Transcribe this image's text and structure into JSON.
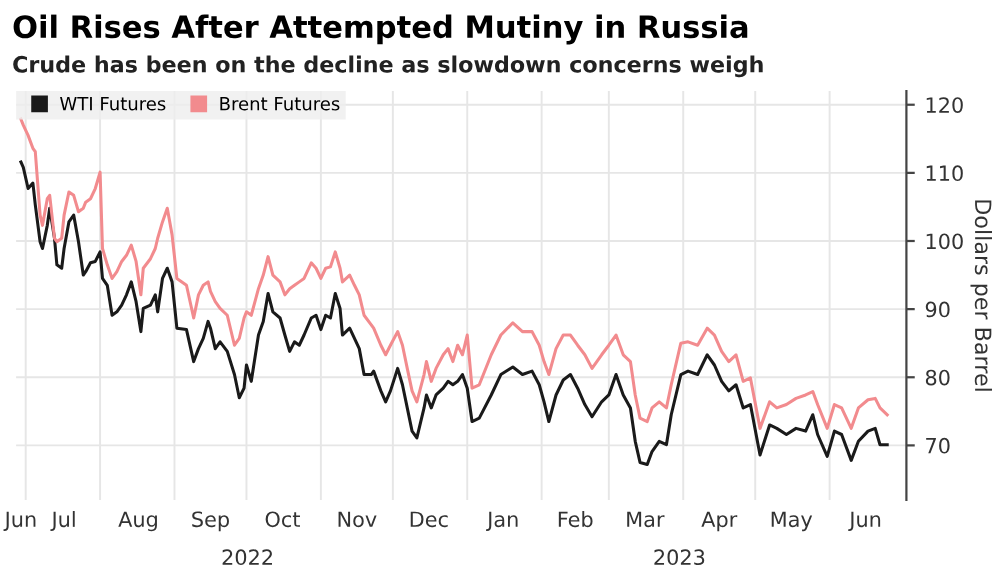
{
  "chart_data": {
    "type": "line",
    "title": "Oil Rises After Attempted Mutiny in Russia",
    "subtitle": "Crude has been on the decline as slowdown concerns weigh",
    "ylabel": "Dollars per Barrel",
    "x": [
      "2022-06-29",
      "2022-06-30",
      "2022-07-02",
      "2022-07-04",
      "2022-07-05",
      "2022-07-07",
      "2022-07-08",
      "2022-07-10",
      "2022-07-11",
      "2022-07-13",
      "2022-07-14",
      "2022-07-16",
      "2022-07-17",
      "2022-07-19",
      "2022-07-21",
      "2022-07-23",
      "2022-07-25",
      "2022-07-26",
      "2022-07-28",
      "2022-07-30",
      "2022-08-01",
      "2022-08-02",
      "2022-08-04",
      "2022-08-06",
      "2022-08-08",
      "2022-08-10",
      "2022-08-12",
      "2022-08-14",
      "2022-08-16",
      "2022-08-18",
      "2022-08-19",
      "2022-08-22",
      "2022-08-24",
      "2022-08-25",
      "2022-08-27",
      "2022-08-29",
      "2022-08-31",
      "2022-09-02",
      "2022-09-06",
      "2022-09-09",
      "2022-09-11",
      "2022-09-13",
      "2022-09-15",
      "2022-09-16",
      "2022-09-18",
      "2022-09-20",
      "2022-09-23",
      "2022-09-26",
      "2022-09-28",
      "2022-09-30",
      "2022-10-01",
      "2022-10-03",
      "2022-10-06",
      "2022-10-08",
      "2022-10-10",
      "2022-10-12",
      "2022-10-15",
      "2022-10-17",
      "2022-10-19",
      "2022-10-21",
      "2022-10-23",
      "2022-10-25",
      "2022-10-28",
      "2022-10-30",
      "2022-11-01",
      "2022-11-03",
      "2022-11-05",
      "2022-11-07",
      "2022-11-09",
      "2022-11-10",
      "2022-11-13",
      "2022-11-15",
      "2022-11-17",
      "2022-11-19",
      "2022-11-22",
      "2022-11-23",
      "2022-11-26",
      "2022-11-28",
      "2022-11-30",
      "2022-12-03",
      "2022-12-05",
      "2022-12-07",
      "2022-12-09",
      "2022-12-11",
      "2022-12-14",
      "2022-12-15",
      "2022-12-17",
      "2022-12-19",
      "2022-12-22",
      "2022-12-24",
      "2022-12-26",
      "2022-12-28",
      "2022-12-30",
      "2023-01-01",
      "2023-01-03",
      "2023-01-06",
      "2023-01-11",
      "2023-01-15",
      "2023-01-20",
      "2023-01-24",
      "2023-01-28",
      "2023-01-31",
      "2023-02-02",
      "2023-02-04",
      "2023-02-07",
      "2023-02-10",
      "2023-02-13",
      "2023-02-16",
      "2023-02-19",
      "2023-02-22",
      "2023-02-26",
      "2023-03-01",
      "2023-03-04",
      "2023-03-07",
      "2023-03-10",
      "2023-03-12",
      "2023-03-14",
      "2023-03-17",
      "2023-03-19",
      "2023-03-22",
      "2023-03-25",
      "2023-03-27",
      "2023-03-31",
      "2023-04-03",
      "2023-04-07",
      "2023-04-11",
      "2023-04-14",
      "2023-04-17",
      "2023-04-20",
      "2023-04-23",
      "2023-04-26",
      "2023-04-29",
      "2023-05-03",
      "2023-05-07",
      "2023-05-10",
      "2023-05-14",
      "2023-05-18",
      "2023-05-22",
      "2023-05-25",
      "2023-05-27",
      "2023-05-31",
      "2023-06-03",
      "2023-06-06",
      "2023-06-10",
      "2023-06-13",
      "2023-06-17",
      "2023-06-20",
      "2023-06-22",
      "2023-06-25"
    ],
    "series": [
      {
        "name": "WTI Futures",
        "color": "#1a1a1a",
        "values": [
          111.6,
          110.8,
          107.7,
          108.5,
          105.3,
          99.9,
          98.9,
          102.3,
          104.8,
          100.4,
          96.5,
          96.0,
          98.9,
          102.8,
          103.8,
          99.9,
          95.0,
          95.5,
          96.8,
          97.0,
          98.4,
          94.5,
          93.5,
          89.1,
          89.6,
          90.6,
          92.1,
          94.0,
          91.1,
          86.7,
          90.1,
          90.6,
          92.1,
          89.6,
          94.5,
          96.0,
          94.0,
          87.2,
          87.0,
          82.3,
          84.2,
          85.7,
          88.2,
          87.2,
          84.2,
          85.2,
          83.8,
          80.4,
          77.0,
          78.4,
          81.8,
          79.4,
          86.2,
          88.2,
          92.3,
          89.6,
          88.7,
          86.2,
          83.8,
          85.2,
          84.7,
          86.2,
          88.7,
          89.1,
          87.0,
          89.1,
          88.7,
          92.3,
          90.1,
          86.2,
          87.2,
          85.7,
          84.2,
          80.4,
          80.4,
          80.9,
          78.0,
          76.4,
          78.0,
          81.3,
          78.9,
          75.5,
          72.1,
          71.1,
          75.5,
          77.4,
          75.5,
          77.4,
          78.4,
          79.4,
          78.9,
          79.4,
          80.4,
          78.4,
          73.5,
          74.0,
          77.4,
          80.4,
          81.5,
          80.4,
          80.9,
          78.9,
          76.4,
          73.5,
          77.4,
          79.6,
          80.4,
          78.4,
          76.0,
          74.2,
          76.4,
          77.4,
          80.4,
          77.4,
          75.5,
          70.6,
          67.5,
          67.2,
          69.1,
          70.6,
          70.1,
          74.5,
          80.4,
          80.9,
          80.4,
          83.3,
          81.8,
          79.4,
          78.0,
          78.9,
          75.5,
          76.0,
          68.6,
          73.0,
          72.5,
          71.6,
          72.5,
          72.1,
          74.5,
          71.6,
          68.4,
          72.1,
          71.6,
          67.8,
          70.6,
          72.1,
          72.5,
          70.1,
          70.1
        ]
      },
      {
        "name": "Brent Futures",
        "color": "#f28b8e",
        "values": [
          117.9,
          117.0,
          115.5,
          113.6,
          113.1,
          103.8,
          102.3,
          106.2,
          106.7,
          100.4,
          99.9,
          100.4,
          103.8,
          107.2,
          106.7,
          104.3,
          104.8,
          105.7,
          106.2,
          107.7,
          110.1,
          98.9,
          96.5,
          94.5,
          95.5,
          97.0,
          97.9,
          99.4,
          97.0,
          92.1,
          96.0,
          97.4,
          98.9,
          100.4,
          102.8,
          104.8,
          100.9,
          94.5,
          93.5,
          88.7,
          92.1,
          93.5,
          94.0,
          92.6,
          91.1,
          90.1,
          89.1,
          84.7,
          85.7,
          88.7,
          89.6,
          89.1,
          93.0,
          95.0,
          97.7,
          95.0,
          94.0,
          92.1,
          93.0,
          93.5,
          94.0,
          94.5,
          96.8,
          96.0,
          94.5,
          96.0,
          96.2,
          98.4,
          96.0,
          94.0,
          95.0,
          93.5,
          92.1,
          89.1,
          87.7,
          87.2,
          84.7,
          83.3,
          84.7,
          86.7,
          84.7,
          81.3,
          78.0,
          76.4,
          80.4,
          82.3,
          79.4,
          81.3,
          83.3,
          84.2,
          82.3,
          84.7,
          83.3,
          86.2,
          78.4,
          78.9,
          83.3,
          86.2,
          88.0,
          86.7,
          86.7,
          84.7,
          82.3,
          80.4,
          84.2,
          86.2,
          86.2,
          84.7,
          83.3,
          81.3,
          83.3,
          84.7,
          86.2,
          83.3,
          82.3,
          77.4,
          74.0,
          73.5,
          75.5,
          76.4,
          75.5,
          78.9,
          85.0,
          85.2,
          84.7,
          87.2,
          86.2,
          83.8,
          82.3,
          83.3,
          79.4,
          79.9,
          72.5,
          76.4,
          75.5,
          76.0,
          76.9,
          77.4,
          77.9,
          76.0,
          72.5,
          76.0,
          75.5,
          72.5,
          75.5,
          76.7,
          76.9,
          75.5,
          74.5
        ]
      }
    ],
    "xlim": [
      "2022-06-27",
      "2023-07-03"
    ],
    "xticks": [
      {
        "value": "2022-07-01",
        "label": null
      },
      {
        "value": "2022-08-01",
        "label": null
      },
      {
        "value": "2022-09-01",
        "label": null
      },
      {
        "value": "2022-10-01",
        "label": null
      },
      {
        "value": "2022-11-01",
        "label": null
      },
      {
        "value": "2022-12-01",
        "label": null
      },
      {
        "value": "2023-01-01",
        "label": null
      },
      {
        "value": "2023-02-01",
        "label": null
      },
      {
        "value": "2023-03-01",
        "label": null
      },
      {
        "value": "2023-04-01",
        "label": null
      },
      {
        "value": "2023-05-01",
        "label": null
      },
      {
        "value": "2023-06-01",
        "label": null
      },
      {
        "value": "2022-06-29",
        "label": "Jun"
      },
      {
        "value": "2022-07-17",
        "label": "Jul"
      },
      {
        "value": "2022-08-17",
        "label": "Aug"
      },
      {
        "value": "2022-09-16",
        "label": "Sep"
      },
      {
        "value": "2022-10-16",
        "label": "Oct"
      },
      {
        "value": "2022-11-16",
        "label": "Nov"
      },
      {
        "value": "2022-12-16",
        "label": "Dec"
      },
      {
        "value": "2023-01-16",
        "label": "Jan"
      },
      {
        "value": "2023-02-15",
        "label": "Feb"
      },
      {
        "value": "2023-03-16",
        "label": "Mar"
      },
      {
        "value": "2023-04-16",
        "label": "Apr"
      },
      {
        "value": "2023-05-16",
        "label": "May"
      },
      {
        "value": "2023-06-16",
        "label": "Jun"
      }
    ],
    "ylim": [
      62,
      122
    ],
    "yticks": [
      70,
      80,
      90,
      100,
      110,
      120
    ],
    "annotations": [
      "2022",
      "2023"
    ],
    "grid": true,
    "legend": "top left"
  }
}
